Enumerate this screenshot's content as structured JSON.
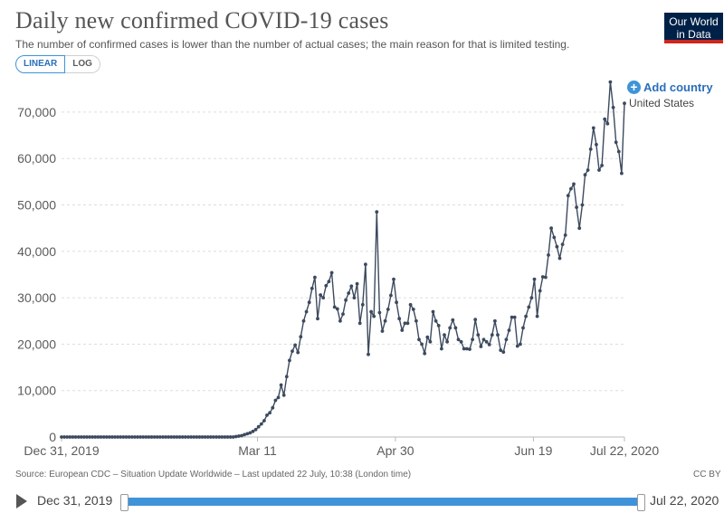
{
  "header": {
    "title": "Daily new confirmed COVID-19 cases",
    "subtitle": "The number of confirmed cases is lower than the number of actual cases; the main reason for that is limited testing.",
    "logo_line1": "Our World",
    "logo_line2": "in Data"
  },
  "controls": {
    "linear_label": "LINEAR",
    "log_label": "LOG",
    "add_country_label": "Add country"
  },
  "footer": {
    "source": "Source: European CDC – Situation Update Worldwide – Last updated 22 July, 10:38 (London time)",
    "license": "CC BY"
  },
  "timeline": {
    "start_label": "Dec 31, 2019",
    "end_label": "Jul 22, 2020"
  },
  "colors": {
    "line": "#3c4a5e",
    "accent": "#3f93d9",
    "grid": "#dddddd"
  },
  "chart_data": {
    "type": "line",
    "title": "Daily new confirmed COVID-19 cases",
    "x_start": "2019-12-31",
    "x_end": "2020-07-22",
    "x_tick_labels": [
      "Dec 31, 2019",
      "Mar 11",
      "Apr 30",
      "Jun 19",
      "Jul 22, 2020"
    ],
    "x_tick_dates": [
      "2019-12-31",
      "2020-03-11",
      "2020-04-30",
      "2020-06-19",
      "2020-07-22"
    ],
    "y_ticks": [
      0,
      10000,
      20000,
      30000,
      40000,
      50000,
      60000,
      70000
    ],
    "y_tick_labels": [
      "0",
      "10,000",
      "20,000",
      "30,000",
      "40,000",
      "50,000",
      "60,000",
      "70,000"
    ],
    "ylim": [
      0,
      77000
    ],
    "grid": true,
    "series": [
      {
        "name": "United States",
        "values": [
          0,
          0,
          0,
          0,
          0,
          0,
          0,
          0,
          0,
          0,
          0,
          0,
          0,
          0,
          0,
          0,
          0,
          0,
          0,
          0,
          0,
          0,
          0,
          0,
          0,
          0,
          0,
          0,
          0,
          0,
          0,
          0,
          0,
          0,
          0,
          0,
          0,
          0,
          0,
          0,
          0,
          0,
          0,
          0,
          0,
          0,
          0,
          0,
          0,
          0,
          0,
          0,
          0,
          0,
          0,
          0,
          0,
          0,
          0,
          0,
          0,
          0,
          100,
          200,
          300,
          500,
          700,
          900,
          1200,
          1600,
          2200,
          2800,
          3500,
          4700,
          5200,
          6300,
          7900,
          8500,
          11200,
          9000,
          13000,
          16500,
          18500,
          19800,
          18200,
          21600,
          25000,
          27000,
          29000,
          32000,
          34400,
          25500,
          30600,
          30000,
          32600,
          33500,
          35400,
          28000,
          27600,
          25000,
          26500,
          29500,
          31000,
          32500,
          30000,
          33000,
          24500,
          28500,
          37200,
          17800,
          27000,
          26000,
          48500,
          26800,
          22800,
          25000,
          27500,
          30500,
          34000,
          29000,
          25500,
          23000,
          24500,
          24500,
          28500,
          27500,
          25000,
          21000,
          20000,
          18000,
          21500,
          20500,
          27000,
          25000,
          24000,
          19000,
          22000,
          20500,
          23500,
          25200,
          23500,
          21000,
          20500,
          19000,
          19000,
          18900,
          21000,
          25300,
          22000,
          19500,
          21000,
          20500,
          19900,
          22000,
          25000,
          22000,
          18700,
          18300,
          21000,
          23000,
          25800,
          25800,
          19600,
          20000,
          23500,
          26000,
          28000,
          30000,
          34000,
          26000,
          31500,
          34500,
          34400,
          39200,
          45000,
          43000,
          41000,
          38500,
          41500,
          43500,
          52000,
          53500,
          54500,
          49500,
          45000,
          50000,
          56500,
          57500,
          62000,
          66600,
          63000,
          57500,
          58500,
          68500,
          67500,
          76500,
          71000,
          63500,
          61500,
          56800,
          71900
        ]
      }
    ]
  }
}
